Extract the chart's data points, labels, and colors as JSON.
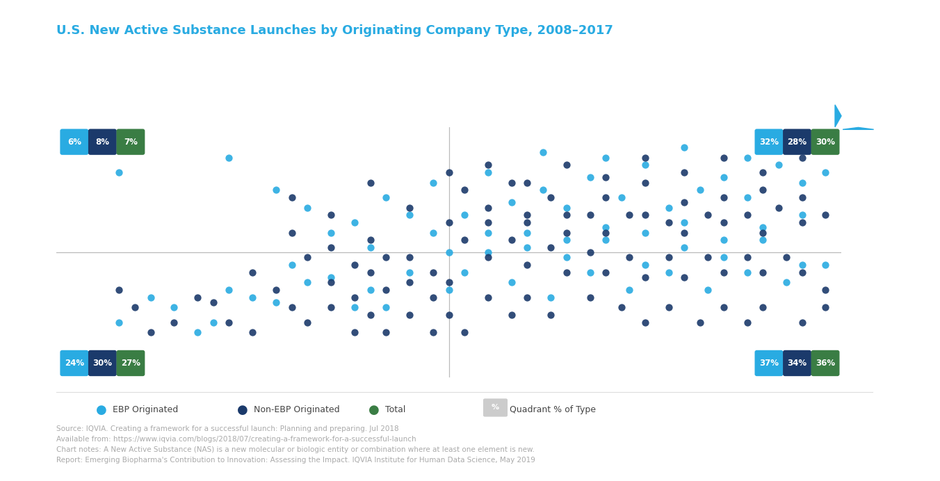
{
  "title": "U.S. New Active Substance Launches by Originating Company Type, 2008–2017",
  "title_color": "#29ABE2",
  "arrow_color": "#29ABE2",
  "background_color": "#FFFFFF",
  "plot_bg_color": "#FFFFFF",
  "ebp_color": "#29ABE2",
  "nonebp_color": "#1B3A6B",
  "total_color": "#3A7D44",
  "quadrant_bg_ebp": "#29ABE2",
  "quadrant_bg_nonebp": "#1B3A6B",
  "quadrant_bg_total": "#3A7D44",
  "quadrant_labels": {
    "top_left": [
      "6%",
      "8%",
      "7%"
    ],
    "top_right": [
      "32%",
      "28%",
      "30%"
    ],
    "bottom_left": [
      "24%",
      "30%",
      "27%"
    ],
    "bottom_right": [
      "37%",
      "34%",
      "36%"
    ]
  },
  "source_text": "Source: IQVIA. Creating a framework for a successful launch: Planning and preparing. Jul 2018\nAvailable from: https://www.iqvia.com/blogs/2018/07/creating-a-framework-for-a-successful-launch\nChart notes: A New Active Substance (NAS) is a new molecular or biologic entity or combination where at least one element is new.\nReport: Emerging Biopharma's Contribution to Innovation: Assessing the Impact. IQVIA Institute for Human Data Science, May 2019",
  "source_color": "#AAAAAA",
  "legend_items": [
    "EBP Originated",
    "Non-EBP Originated",
    "Total",
    "Quadrant % of Type"
  ],
  "ebp_points": [
    [
      0.08,
      0.82
    ],
    [
      0.22,
      0.88
    ],
    [
      0.28,
      0.75
    ],
    [
      0.32,
      0.68
    ],
    [
      0.38,
      0.62
    ],
    [
      0.42,
      0.72
    ],
    [
      0.48,
      0.78
    ],
    [
      0.52,
      0.65
    ],
    [
      0.55,
      0.82
    ],
    [
      0.58,
      0.7
    ],
    [
      0.62,
      0.75
    ],
    [
      0.65,
      0.68
    ],
    [
      0.68,
      0.8
    ],
    [
      0.72,
      0.72
    ],
    [
      0.75,
      0.85
    ],
    [
      0.78,
      0.68
    ],
    [
      0.82,
      0.75
    ],
    [
      0.85,
      0.8
    ],
    [
      0.88,
      0.72
    ],
    [
      0.92,
      0.85
    ],
    [
      0.95,
      0.78
    ],
    [
      0.98,
      0.82
    ],
    [
      0.62,
      0.9
    ],
    [
      0.7,
      0.88
    ],
    [
      0.8,
      0.92
    ],
    [
      0.88,
      0.88
    ],
    [
      0.55,
      0.58
    ],
    [
      0.6,
      0.52
    ],
    [
      0.65,
      0.48
    ],
    [
      0.7,
      0.55
    ],
    [
      0.75,
      0.45
    ],
    [
      0.8,
      0.52
    ],
    [
      0.85,
      0.48
    ],
    [
      0.9,
      0.55
    ],
    [
      0.95,
      0.45
    ],
    [
      0.52,
      0.42
    ],
    [
      0.58,
      0.38
    ],
    [
      0.63,
      0.32
    ],
    [
      0.68,
      0.42
    ],
    [
      0.73,
      0.35
    ],
    [
      0.78,
      0.42
    ],
    [
      0.83,
      0.35
    ],
    [
      0.88,
      0.42
    ],
    [
      0.93,
      0.38
    ],
    [
      0.98,
      0.45
    ],
    [
      0.5,
      0.5
    ],
    [
      0.55,
      0.5
    ],
    [
      0.6,
      0.58
    ],
    [
      0.65,
      0.55
    ],
    [
      0.7,
      0.6
    ],
    [
      0.75,
      0.58
    ],
    [
      0.8,
      0.62
    ],
    [
      0.85,
      0.55
    ],
    [
      0.9,
      0.6
    ],
    [
      0.95,
      0.65
    ],
    [
      0.35,
      0.58
    ],
    [
      0.4,
      0.52
    ],
    [
      0.45,
      0.65
    ],
    [
      0.48,
      0.58
    ],
    [
      0.3,
      0.45
    ],
    [
      0.35,
      0.4
    ],
    [
      0.4,
      0.35
    ],
    [
      0.45,
      0.42
    ],
    [
      0.5,
      0.35
    ],
    [
      0.22,
      0.35
    ],
    [
      0.28,
      0.3
    ],
    [
      0.32,
      0.38
    ],
    [
      0.38,
      0.28
    ],
    [
      0.42,
      0.28
    ],
    [
      0.15,
      0.28
    ],
    [
      0.2,
      0.22
    ],
    [
      0.25,
      0.32
    ],
    [
      0.18,
      0.18
    ],
    [
      0.12,
      0.32
    ],
    [
      0.08,
      0.22
    ]
  ],
  "nonebp_points": [
    [
      0.3,
      0.72
    ],
    [
      0.35,
      0.65
    ],
    [
      0.4,
      0.78
    ],
    [
      0.45,
      0.68
    ],
    [
      0.5,
      0.82
    ],
    [
      0.52,
      0.75
    ],
    [
      0.55,
      0.68
    ],
    [
      0.58,
      0.78
    ],
    [
      0.6,
      0.65
    ],
    [
      0.63,
      0.72
    ],
    [
      0.65,
      0.58
    ],
    [
      0.68,
      0.65
    ],
    [
      0.7,
      0.72
    ],
    [
      0.73,
      0.65
    ],
    [
      0.75,
      0.78
    ],
    [
      0.78,
      0.62
    ],
    [
      0.8,
      0.7
    ],
    [
      0.83,
      0.65
    ],
    [
      0.85,
      0.72
    ],
    [
      0.88,
      0.65
    ],
    [
      0.9,
      0.75
    ],
    [
      0.92,
      0.68
    ],
    [
      0.95,
      0.72
    ],
    [
      0.98,
      0.65
    ],
    [
      0.55,
      0.85
    ],
    [
      0.6,
      0.78
    ],
    [
      0.65,
      0.85
    ],
    [
      0.7,
      0.8
    ],
    [
      0.75,
      0.88
    ],
    [
      0.8,
      0.82
    ],
    [
      0.85,
      0.88
    ],
    [
      0.9,
      0.82
    ],
    [
      0.95,
      0.88
    ],
    [
      0.52,
      0.55
    ],
    [
      0.55,
      0.48
    ],
    [
      0.58,
      0.55
    ],
    [
      0.6,
      0.45
    ],
    [
      0.63,
      0.52
    ],
    [
      0.65,
      0.42
    ],
    [
      0.68,
      0.5
    ],
    [
      0.7,
      0.42
    ],
    [
      0.73,
      0.48
    ],
    [
      0.75,
      0.4
    ],
    [
      0.78,
      0.48
    ],
    [
      0.8,
      0.4
    ],
    [
      0.83,
      0.48
    ],
    [
      0.85,
      0.42
    ],
    [
      0.88,
      0.48
    ],
    [
      0.9,
      0.42
    ],
    [
      0.93,
      0.48
    ],
    [
      0.95,
      0.42
    ],
    [
      0.98,
      0.35
    ],
    [
      0.45,
      0.48
    ],
    [
      0.48,
      0.42
    ],
    [
      0.35,
      0.52
    ],
    [
      0.38,
      0.45
    ],
    [
      0.4,
      0.55
    ],
    [
      0.42,
      0.48
    ],
    [
      0.3,
      0.58
    ],
    [
      0.32,
      0.48
    ],
    [
      0.35,
      0.38
    ],
    [
      0.38,
      0.32
    ],
    [
      0.4,
      0.42
    ],
    [
      0.42,
      0.35
    ],
    [
      0.45,
      0.38
    ],
    [
      0.48,
      0.32
    ],
    [
      0.5,
      0.38
    ],
    [
      0.25,
      0.42
    ],
    [
      0.28,
      0.35
    ],
    [
      0.3,
      0.28
    ],
    [
      0.32,
      0.22
    ],
    [
      0.35,
      0.28
    ],
    [
      0.38,
      0.18
    ],
    [
      0.4,
      0.25
    ],
    [
      0.42,
      0.18
    ],
    [
      0.45,
      0.25
    ],
    [
      0.48,
      0.18
    ],
    [
      0.5,
      0.25
    ],
    [
      0.52,
      0.18
    ],
    [
      0.2,
      0.3
    ],
    [
      0.22,
      0.22
    ],
    [
      0.25,
      0.18
    ],
    [
      0.15,
      0.22
    ],
    [
      0.18,
      0.32
    ],
    [
      0.12,
      0.18
    ],
    [
      0.1,
      0.28
    ],
    [
      0.08,
      0.35
    ],
    [
      0.55,
      0.32
    ],
    [
      0.58,
      0.25
    ],
    [
      0.6,
      0.32
    ],
    [
      0.63,
      0.25
    ],
    [
      0.68,
      0.32
    ],
    [
      0.72,
      0.28
    ],
    [
      0.75,
      0.22
    ],
    [
      0.78,
      0.28
    ],
    [
      0.82,
      0.22
    ],
    [
      0.85,
      0.28
    ],
    [
      0.88,
      0.22
    ],
    [
      0.9,
      0.28
    ],
    [
      0.95,
      0.22
    ],
    [
      0.98,
      0.28
    ],
    [
      0.5,
      0.62
    ],
    [
      0.55,
      0.62
    ],
    [
      0.6,
      0.62
    ],
    [
      0.65,
      0.65
    ],
    [
      0.7,
      0.58
    ],
    [
      0.75,
      0.65
    ],
    [
      0.8,
      0.58
    ],
    [
      0.85,
      0.62
    ],
    [
      0.9,
      0.58
    ],
    [
      0.95,
      0.62
    ]
  ]
}
